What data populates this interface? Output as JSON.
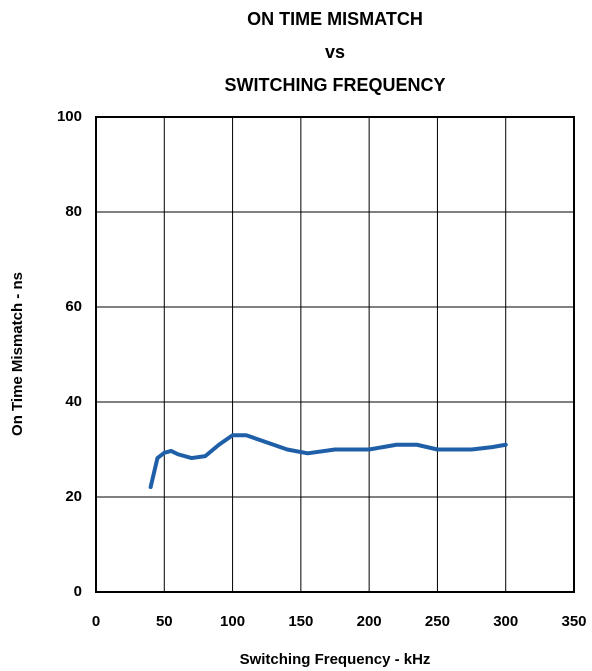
{
  "chart_data": {
    "type": "line",
    "title": [
      "ON TIME MISMATCH",
      "vs",
      "SWITCHING FREQUENCY"
    ],
    "x_label": "Switching Frequency - kHz",
    "y_label": "On Time Mismatch - ns",
    "x": [
      40,
      45,
      50,
      55,
      60,
      70,
      80,
      90,
      100,
      110,
      120,
      140,
      155,
      175,
      200,
      220,
      235,
      250,
      275,
      290,
      300
    ],
    "series": [
      {
        "color": "#1f5fa8",
        "values": [
          22.1,
          28.2,
          29.3,
          29.7,
          29,
          28.2,
          28.6,
          31,
          33,
          33,
          32,
          30,
          29.2,
          30,
          30,
          31,
          31,
          30,
          30,
          30.5,
          31
        ]
      }
    ],
    "xlim": [
      0,
      350
    ],
    "xticks": [
      0,
      50,
      100,
      150,
      200,
      250,
      300,
      350
    ],
    "ylim": [
      0,
      100
    ],
    "yticks": [
      0,
      20,
      40,
      60,
      80,
      100
    ],
    "grid": true
  }
}
